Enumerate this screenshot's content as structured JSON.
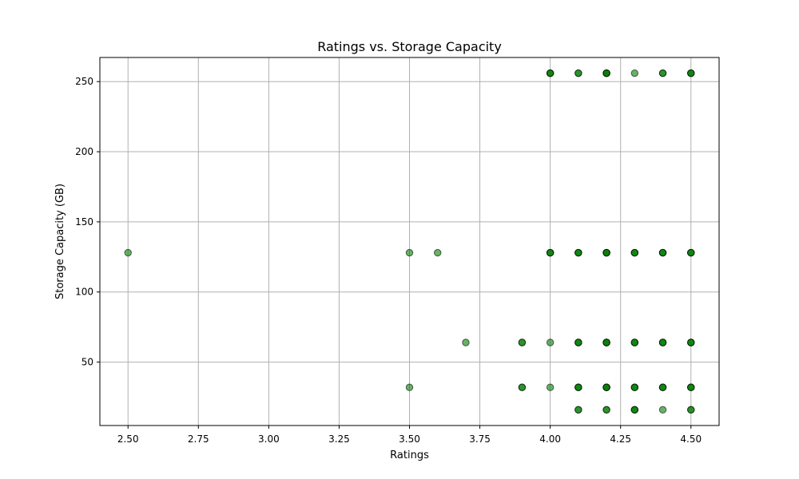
{
  "chart_data": {
    "type": "scatter",
    "title": "Ratings vs. Storage Capacity",
    "xlabel": "Ratings",
    "ylabel": "Storage Capacity (GB)",
    "xlim": [
      2.4,
      4.6
    ],
    "ylim": [
      4.8,
      267.2
    ],
    "xticks": [
      2.5,
      2.75,
      3.0,
      3.25,
      3.5,
      3.75,
      4.0,
      4.25,
      4.5
    ],
    "xtick_labels": [
      "2.50",
      "2.75",
      "3.00",
      "3.25",
      "3.50",
      "3.75",
      "4.00",
      "4.25",
      "4.50"
    ],
    "yticks": [
      50,
      100,
      150,
      200,
      250
    ],
    "ytick_labels": [
      "50",
      "100",
      "150",
      "200",
      "250"
    ],
    "grid": true,
    "marker_color": "#008000",
    "marker_edge_color": "#000000",
    "marker_alpha": 0.6,
    "points": [
      {
        "x": 2.5,
        "y": 128
      },
      {
        "x": 3.5,
        "y": 128
      },
      {
        "x": 3.5,
        "y": 32
      },
      {
        "x": 3.6,
        "y": 128
      },
      {
        "x": 3.7,
        "y": 64
      },
      {
        "x": 3.9,
        "y": 64
      },
      {
        "x": 3.9,
        "y": 64
      },
      {
        "x": 3.9,
        "y": 32
      },
      {
        "x": 3.9,
        "y": 32
      },
      {
        "x": 4.0,
        "y": 256
      },
      {
        "x": 4.0,
        "y": 256
      },
      {
        "x": 4.0,
        "y": 256
      },
      {
        "x": 4.0,
        "y": 128
      },
      {
        "x": 4.0,
        "y": 128
      },
      {
        "x": 4.0,
        "y": 128
      },
      {
        "x": 4.0,
        "y": 64
      },
      {
        "x": 4.0,
        "y": 32
      },
      {
        "x": 4.1,
        "y": 256
      },
      {
        "x": 4.1,
        "y": 256
      },
      {
        "x": 4.1,
        "y": 128
      },
      {
        "x": 4.1,
        "y": 128
      },
      {
        "x": 4.1,
        "y": 128
      },
      {
        "x": 4.1,
        "y": 64
      },
      {
        "x": 4.1,
        "y": 64
      },
      {
        "x": 4.1,
        "y": 64
      },
      {
        "x": 4.1,
        "y": 32
      },
      {
        "x": 4.1,
        "y": 32
      },
      {
        "x": 4.1,
        "y": 32
      },
      {
        "x": 4.1,
        "y": 16
      },
      {
        "x": 4.1,
        "y": 16
      },
      {
        "x": 4.2,
        "y": 256
      },
      {
        "x": 4.2,
        "y": 256
      },
      {
        "x": 4.2,
        "y": 256
      },
      {
        "x": 4.2,
        "y": 256
      },
      {
        "x": 4.2,
        "y": 128
      },
      {
        "x": 4.2,
        "y": 128
      },
      {
        "x": 4.2,
        "y": 128
      },
      {
        "x": 4.2,
        "y": 128
      },
      {
        "x": 4.2,
        "y": 64
      },
      {
        "x": 4.2,
        "y": 64
      },
      {
        "x": 4.2,
        "y": 64
      },
      {
        "x": 4.2,
        "y": 64
      },
      {
        "x": 4.2,
        "y": 32
      },
      {
        "x": 4.2,
        "y": 32
      },
      {
        "x": 4.2,
        "y": 32
      },
      {
        "x": 4.2,
        "y": 32
      },
      {
        "x": 4.2,
        "y": 16
      },
      {
        "x": 4.2,
        "y": 16
      },
      {
        "x": 4.3,
        "y": 256
      },
      {
        "x": 4.3,
        "y": 128
      },
      {
        "x": 4.3,
        "y": 128
      },
      {
        "x": 4.3,
        "y": 128
      },
      {
        "x": 4.3,
        "y": 64
      },
      {
        "x": 4.3,
        "y": 64
      },
      {
        "x": 4.3,
        "y": 64
      },
      {
        "x": 4.3,
        "y": 32
      },
      {
        "x": 4.3,
        "y": 32
      },
      {
        "x": 4.3,
        "y": 32
      },
      {
        "x": 4.3,
        "y": 16
      },
      {
        "x": 4.3,
        "y": 16
      },
      {
        "x": 4.3,
        "y": 16
      },
      {
        "x": 4.4,
        "y": 256
      },
      {
        "x": 4.4,
        "y": 256
      },
      {
        "x": 4.4,
        "y": 128
      },
      {
        "x": 4.4,
        "y": 128
      },
      {
        "x": 4.4,
        "y": 128
      },
      {
        "x": 4.4,
        "y": 64
      },
      {
        "x": 4.4,
        "y": 64
      },
      {
        "x": 4.4,
        "y": 64
      },
      {
        "x": 4.4,
        "y": 32
      },
      {
        "x": 4.4,
        "y": 32
      },
      {
        "x": 4.4,
        "y": 32
      },
      {
        "x": 4.4,
        "y": 16
      },
      {
        "x": 4.5,
        "y": 256
      },
      {
        "x": 4.5,
        "y": 256
      },
      {
        "x": 4.5,
        "y": 256
      },
      {
        "x": 4.5,
        "y": 128
      },
      {
        "x": 4.5,
        "y": 128
      },
      {
        "x": 4.5,
        "y": 128
      },
      {
        "x": 4.5,
        "y": 64
      },
      {
        "x": 4.5,
        "y": 64
      },
      {
        "x": 4.5,
        "y": 64
      },
      {
        "x": 4.5,
        "y": 32
      },
      {
        "x": 4.5,
        "y": 32
      },
      {
        "x": 4.5,
        "y": 32
      },
      {
        "x": 4.5,
        "y": 16
      },
      {
        "x": 4.5,
        "y": 16
      }
    ]
  }
}
